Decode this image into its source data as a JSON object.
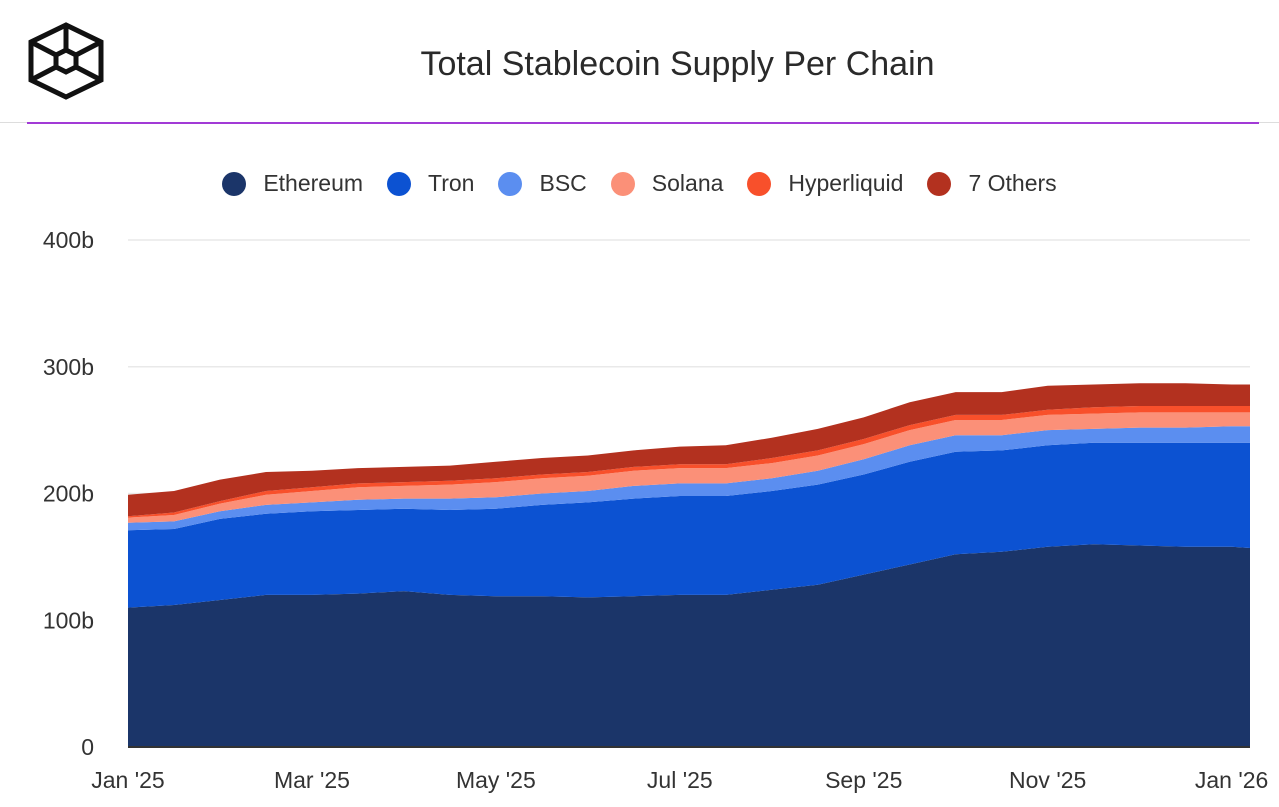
{
  "header": {
    "title": "Total Stablecoin Supply Per Chain",
    "logo_icon": "cube-logo-icon",
    "accent_color": "#a23ad6"
  },
  "legend": [
    {
      "label": "Ethereum",
      "color": "#1b3569"
    },
    {
      "label": "Tron",
      "color": "#0c52d2"
    },
    {
      "label": "BSC",
      "color": "#5b8ef0"
    },
    {
      "label": "Solana",
      "color": "#fb9078"
    },
    {
      "label": "Hyperliquid",
      "color": "#f8502b"
    },
    {
      "label": "7 Others",
      "color": "#b3311f"
    }
  ],
  "chart_data": {
    "type": "area",
    "stacked": true,
    "title": "Total Stablecoin Supply Per Chain",
    "xlabel": "",
    "ylabel": "",
    "unit": "b",
    "ylim": [
      0,
      400
    ],
    "yticks": [
      0,
      100,
      200,
      300,
      400
    ],
    "ytick_labels": [
      "0",
      "100b",
      "200b",
      "300b",
      "400b"
    ],
    "xlim": [
      0,
      12.2
    ],
    "xticks": [
      0,
      2,
      4,
      6,
      8,
      10,
      12
    ],
    "xtick_labels": [
      "Jan '25",
      "Mar '25",
      "May '25",
      "Jul '25",
      "Sep '25",
      "Nov '25",
      "Jan '26"
    ],
    "grid": true,
    "legend_position": "top",
    "x": [
      0,
      0.5,
      1,
      1.5,
      2,
      2.5,
      3,
      3.5,
      4,
      4.5,
      5,
      5.5,
      6,
      6.5,
      7,
      7.5,
      8,
      8.5,
      9,
      9.5,
      10,
      10.5,
      11,
      11.5,
      12,
      12.2
    ],
    "series": [
      {
        "name": "Ethereum",
        "values": [
          110,
          112,
          116,
          120,
          120,
          121,
          123,
          120,
          119,
          119,
          118,
          119,
          120,
          120,
          124,
          128,
          136,
          144,
          152,
          154,
          158,
          160,
          159,
          158,
          158,
          157
        ]
      },
      {
        "name": "Tron",
        "values": [
          61,
          60,
          64,
          64,
          66,
          66,
          65,
          67,
          69,
          72,
          75,
          77,
          78,
          78,
          78,
          79,
          79,
          81,
          81,
          80,
          80,
          80,
          81,
          82,
          82,
          83
        ]
      },
      {
        "name": "BSC",
        "values": [
          6,
          6,
          6,
          7,
          7,
          8,
          8,
          9,
          9,
          9,
          9,
          10,
          10,
          10,
          10,
          11,
          12,
          13,
          13,
          12,
          12,
          11,
          12,
          12,
          13,
          13
        ]
      },
      {
        "name": "Solana",
        "values": [
          4,
          5,
          6,
          8,
          9,
          10,
          10,
          11,
          12,
          12,
          12,
          12,
          12,
          12,
          12,
          12,
          12,
          12,
          12,
          12,
          12,
          12,
          12,
          12,
          11,
          11
        ]
      },
      {
        "name": "Hyperliquid",
        "values": [
          1,
          2,
          2,
          3,
          3,
          3,
          3,
          3,
          3,
          3,
          3,
          3,
          3,
          3,
          4,
          4,
          4,
          4,
          4,
          4,
          4,
          5,
          5,
          5,
          5,
          5
        ]
      },
      {
        "name": "7 Others",
        "values": [
          17,
          17,
          17,
          15,
          13,
          12,
          12,
          12,
          13,
          13,
          13,
          13,
          14,
          15,
          16,
          17,
          17,
          18,
          18,
          18,
          19,
          18,
          18,
          18,
          17,
          17
        ]
      }
    ]
  }
}
